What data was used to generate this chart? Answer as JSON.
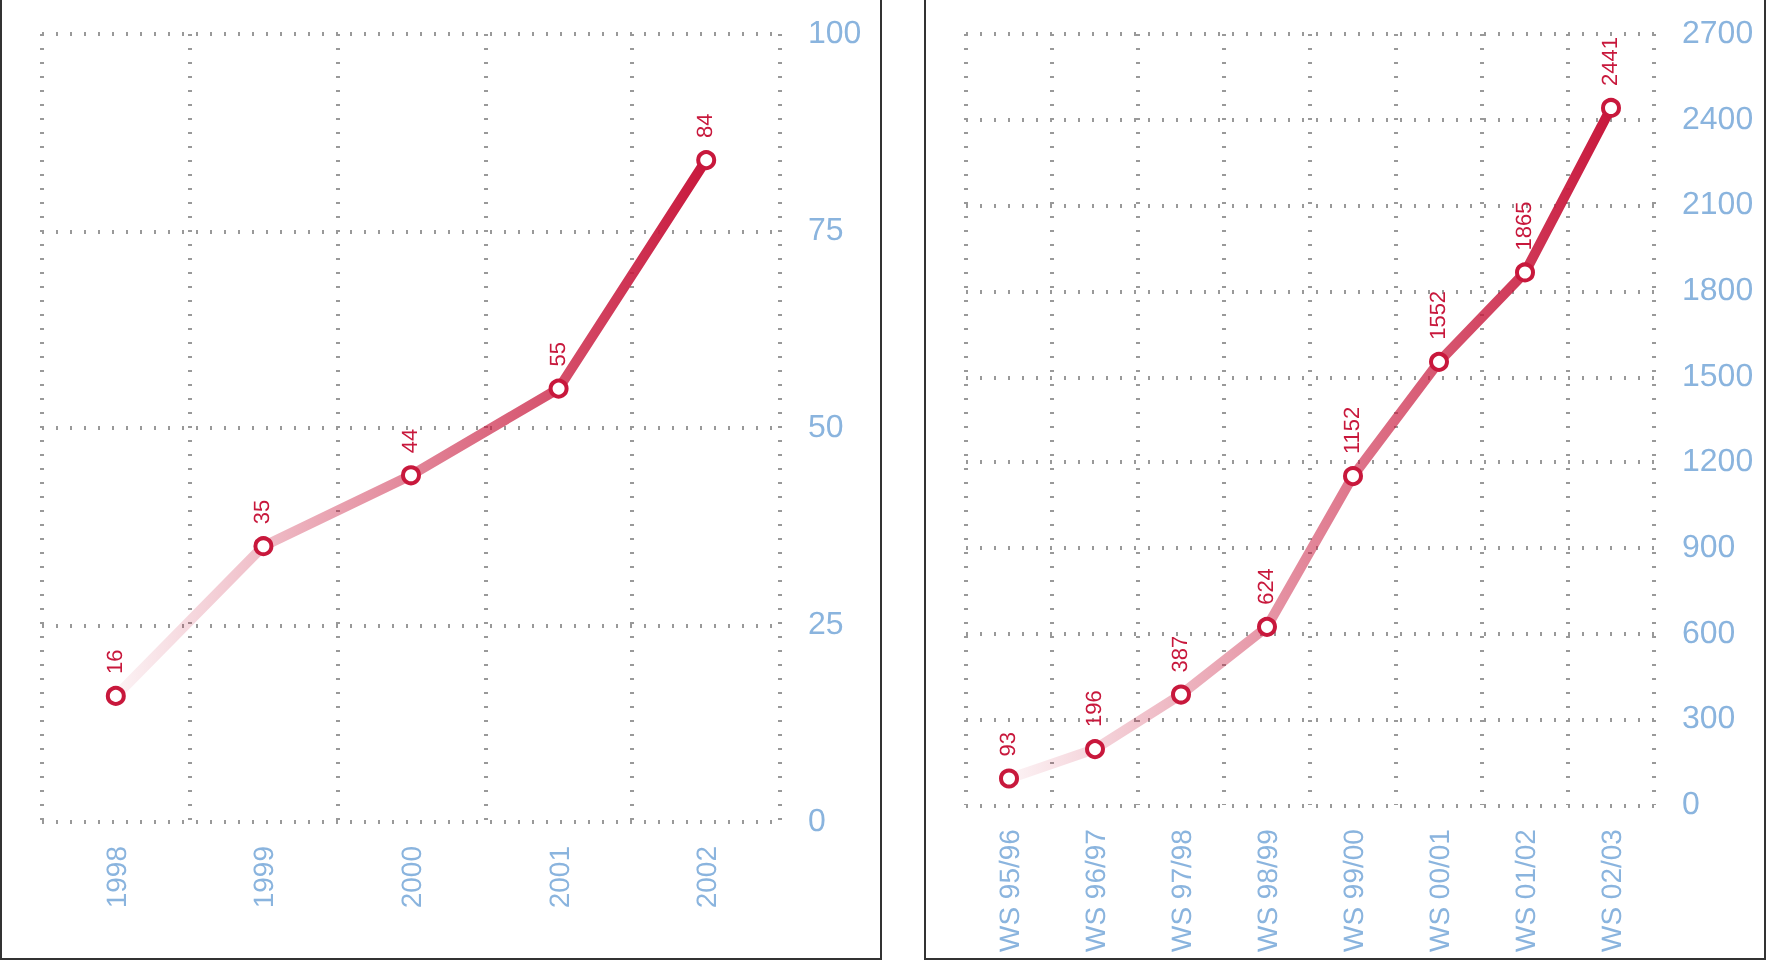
{
  "chart_data": [
    {
      "type": "line",
      "categories": [
        "1998",
        "1999",
        "2000",
        "2001",
        "2002"
      ],
      "values": [
        16,
        35,
        44,
        55,
        84
      ],
      "color": "#c8183c",
      "ylim": [
        0,
        100
      ],
      "yticks": [
        0,
        25,
        50,
        75,
        100
      ],
      "grid": true,
      "marker": "circle",
      "data_labels": true
    },
    {
      "type": "line",
      "categories": [
        "WS 95/96",
        "WS 96/97",
        "WS 97/98",
        "WS 98/99",
        "WS 99/00",
        "WS 00/01",
        "WS 01/02",
        "WS 02/03"
      ],
      "values": [
        93,
        196,
        387,
        624,
        1152,
        1552,
        1865,
        2441
      ],
      "color": "#c8183c",
      "ylim": [
        0,
        2700
      ],
      "yticks": [
        0,
        300,
        600,
        900,
        1200,
        1500,
        1800,
        2100,
        2400,
        2700
      ],
      "grid": true,
      "marker": "circle",
      "data_labels": true
    }
  ]
}
